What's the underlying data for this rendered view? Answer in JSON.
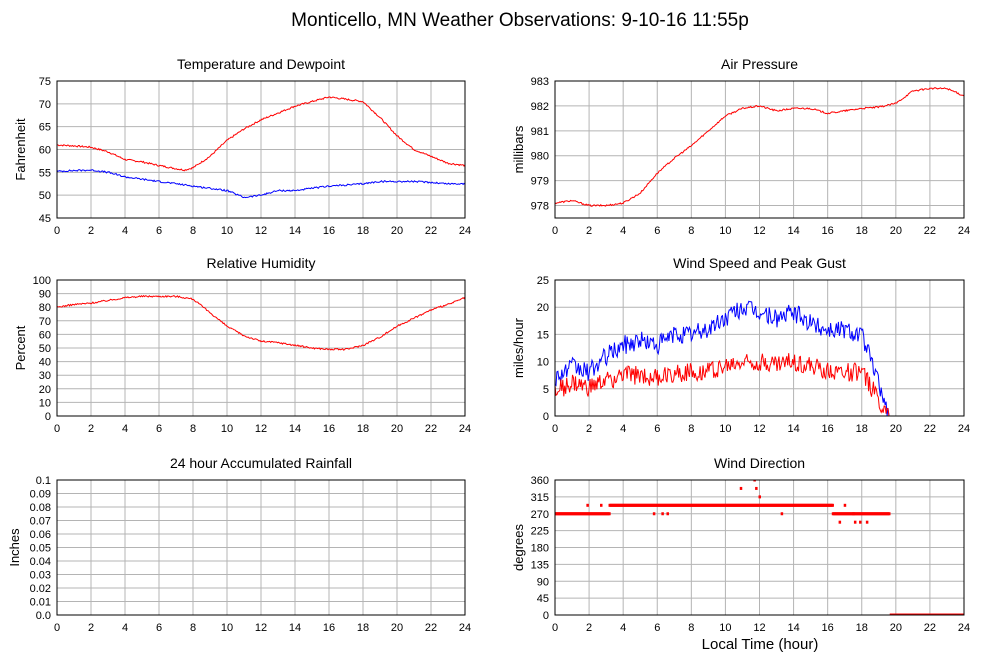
{
  "page_title": "Monticello, MN Weather Observations: 9-10-16 11:55p",
  "shared_xlabel": "Local Time (hour)",
  "colors": {
    "red": "#ff0000",
    "blue": "#0000ff",
    "grid": "#b4b4b4",
    "frame": "#000000"
  },
  "chart_data": [
    {
      "id": "temp",
      "type": "line",
      "title": "Temperature and Dewpoint",
      "xlabel": "",
      "ylabel": "Fahrenheit",
      "xlim": [
        0,
        24
      ],
      "ylim": [
        45,
        75
      ],
      "xticks": [
        0,
        2,
        4,
        6,
        8,
        10,
        12,
        14,
        16,
        18,
        20,
        22,
        24
      ],
      "yticks": [
        45,
        50,
        55,
        60,
        65,
        70,
        75
      ],
      "ytick_labels": [
        "45",
        "50",
        "55",
        "60",
        "65",
        "70",
        "75"
      ],
      "grid": true,
      "series": [
        {
          "color": "#ff0000",
          "x": [
            0,
            1,
            2,
            3,
            4,
            5,
            6,
            7,
            7.5,
            8,
            9,
            10,
            11,
            12,
            13,
            14,
            15,
            16,
            17,
            18,
            19,
            20,
            21,
            22,
            23,
            24
          ],
          "y": [
            61,
            60.8,
            60.5,
            59.5,
            57.8,
            57.3,
            56.5,
            55.8,
            55.5,
            56,
            58.5,
            62,
            64.5,
            66.5,
            68,
            69.5,
            70.5,
            71.5,
            71,
            70.5,
            67,
            63,
            60,
            58.5,
            57,
            56.5
          ]
        },
        {
          "color": "#0000ff",
          "x": [
            0,
            1,
            2,
            3,
            4,
            5,
            6,
            7,
            8,
            9,
            10,
            11,
            12,
            13,
            14,
            15,
            16,
            17,
            18,
            19,
            20,
            21,
            22,
            23,
            24
          ],
          "y": [
            55.2,
            55.4,
            55.5,
            55,
            54,
            53.5,
            53,
            52.5,
            52,
            51.5,
            51,
            49.5,
            50,
            51,
            51,
            51.5,
            52,
            52.2,
            52.5,
            53,
            53,
            53,
            52.8,
            52.5,
            52.5
          ]
        }
      ]
    },
    {
      "id": "pressure",
      "type": "line",
      "title": "Air Pressure",
      "xlabel": "",
      "ylabel": "millibars",
      "xlim": [
        0,
        24
      ],
      "ylim": [
        977.5,
        983
      ],
      "xticks": [
        0,
        2,
        4,
        6,
        8,
        10,
        12,
        14,
        16,
        18,
        20,
        22,
        24
      ],
      "yticks": [
        978,
        979,
        980,
        981,
        982,
        983
      ],
      "ytick_labels": [
        "978",
        "979",
        "980",
        "981",
        "982",
        "983"
      ],
      "grid": true,
      "series": [
        {
          "color": "#ff0000",
          "x": [
            0,
            1,
            2,
            3,
            4,
            5,
            6,
            7,
            8,
            9,
            10,
            11,
            12,
            13,
            14,
            15,
            16,
            17,
            18,
            19,
            20,
            21,
            22,
            23,
            24
          ],
          "y": [
            978.1,
            978.2,
            978,
            978,
            978.1,
            978.5,
            979.3,
            979.9,
            980.4,
            981,
            981.6,
            981.9,
            982,
            981.8,
            981.9,
            981.9,
            981.7,
            981.8,
            981.9,
            981.95,
            982.1,
            982.6,
            982.7,
            982.7,
            982.4
          ]
        }
      ]
    },
    {
      "id": "humidity",
      "type": "line",
      "title": "Relative Humidity",
      "xlabel": "",
      "ylabel": "Percent",
      "xlim": [
        0,
        24
      ],
      "ylim": [
        0,
        100
      ],
      "xticks": [
        0,
        2,
        4,
        6,
        8,
        10,
        12,
        14,
        16,
        18,
        20,
        22,
        24
      ],
      "yticks": [
        0,
        10,
        20,
        30,
        40,
        50,
        60,
        70,
        80,
        90,
        100
      ],
      "ytick_labels": [
        "0",
        "10",
        "20",
        "30",
        "40",
        "50",
        "60",
        "70",
        "80",
        "90",
        "100"
      ],
      "grid": true,
      "series": [
        {
          "color": "#ff0000",
          "x": [
            0,
            1,
            2,
            3,
            4,
            5,
            6,
            7,
            8,
            9,
            10,
            11,
            12,
            13,
            14,
            15,
            16,
            17,
            18,
            19,
            20,
            21,
            22,
            23,
            24
          ],
          "y": [
            80,
            82,
            83,
            85,
            87,
            88,
            88,
            88,
            86,
            76,
            66,
            59,
            55,
            54,
            52,
            50,
            49,
            49,
            52,
            58,
            66,
            72,
            78,
            82,
            87
          ]
        }
      ]
    },
    {
      "id": "wind",
      "type": "line",
      "title": "Wind Speed and Peak Gust",
      "xlabel": "",
      "ylabel": "miles/hour",
      "xlim": [
        0,
        24
      ],
      "ylim": [
        0,
        25
      ],
      "xticks": [
        0,
        2,
        4,
        6,
        8,
        10,
        12,
        14,
        16,
        18,
        20,
        22,
        24
      ],
      "yticks": [
        0,
        5,
        10,
        15,
        20,
        25
      ],
      "ytick_labels": [
        "0",
        "5",
        "10",
        "15",
        "20",
        "25"
      ],
      "grid": true,
      "series": [
        {
          "color": "#0000ff",
          "x": [
            0,
            1,
            2,
            3,
            4,
            5,
            6,
            7,
            8,
            9,
            10,
            11,
            12,
            13,
            14,
            15,
            16,
            17,
            18,
            19,
            19.6,
            20,
            24
          ],
          "y": [
            7,
            9,
            8,
            11,
            13,
            14,
            13,
            15,
            15,
            16,
            18,
            20,
            19,
            18,
            19,
            17,
            16,
            16,
            15,
            6,
            0,
            0,
            0
          ]
        },
        {
          "color": "#ff0000",
          "x": [
            0,
            1,
            2,
            3,
            4,
            5,
            6,
            7,
            8,
            9,
            10,
            11,
            12,
            13,
            14,
            15,
            16,
            17,
            18,
            19,
            19.6,
            20,
            24
          ],
          "y": [
            4.5,
            6,
            5,
            6.5,
            7.5,
            7.5,
            7,
            8,
            8,
            8.5,
            9,
            10,
            10,
            9.5,
            10,
            9,
            8.5,
            8,
            8,
            3,
            0,
            0,
            0
          ]
        }
      ]
    },
    {
      "id": "rain",
      "type": "line",
      "title": "24 hour Accumulated Rainfall",
      "xlabel": "",
      "ylabel": "Inches",
      "xlim": [
        0,
        24
      ],
      "ylim": [
        0,
        0.1
      ],
      "xticks": [
        0,
        2,
        4,
        6,
        8,
        10,
        12,
        14,
        16,
        18,
        20,
        22,
        24
      ],
      "yticks": [
        0,
        0.01,
        0.02,
        0.03,
        0.04,
        0.05,
        0.06,
        0.07,
        0.08,
        0.09,
        0.1
      ],
      "ytick_labels": [
        "0.0",
        "0.01",
        "0.02",
        "0.03",
        "0.04",
        "0.05",
        "0.06",
        "0.07",
        "0.08",
        "0.09",
        "0.1"
      ],
      "grid": true,
      "series": [
        {
          "color": "#ff0000",
          "x": [
            0,
            24
          ],
          "y": [
            0,
            0
          ]
        }
      ]
    },
    {
      "id": "direction",
      "type": "scatter",
      "title": "Wind Direction",
      "xlabel": "Local Time (hour)",
      "ylabel": "degrees",
      "xlim": [
        0,
        24
      ],
      "ylim": [
        0,
        360
      ],
      "xticks": [
        0,
        2,
        4,
        6,
        8,
        10,
        12,
        14,
        16,
        18,
        20,
        22,
        24
      ],
      "yticks": [
        0,
        45,
        90,
        135,
        180,
        225,
        270,
        315,
        360
      ],
      "ytick_labels": [
        "0",
        "45",
        "90",
        "135",
        "180",
        "225",
        "270",
        "315",
        "360"
      ],
      "grid": true,
      "segments": [
        {
          "x_start": 0,
          "x_end": 3.2,
          "y": 270
        },
        {
          "x_start": 3.2,
          "x_end": 16.3,
          "y": 292.5
        },
        {
          "x_start": 16.3,
          "x_end": 17.5,
          "y": 270
        },
        {
          "x_start": 17.5,
          "x_end": 19.6,
          "y": 270
        },
        {
          "x_start": 19.7,
          "x_end": 24,
          "y": 0
        }
      ],
      "points": {
        "x": [
          1.9,
          2.7,
          5.8,
          6.3,
          6.6,
          10.9,
          11.7,
          11.8,
          12.0,
          13.3,
          16.7,
          17.0,
          17.6,
          17.9,
          18.3
        ],
        "y": [
          292.5,
          292.5,
          270,
          270,
          270,
          337.5,
          360,
          337.5,
          315,
          270,
          247.5,
          292.5,
          247.5,
          247.5,
          247.5
        ]
      }
    }
  ]
}
